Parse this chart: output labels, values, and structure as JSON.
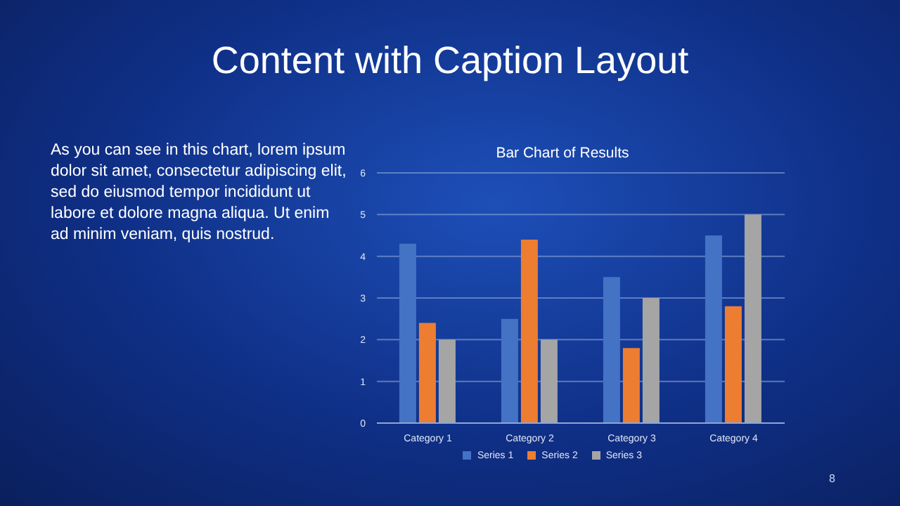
{
  "chart_data": {
    "type": "bar",
    "title": "Content with Caption Layout",
    "subtitle": "Bar Chart of Results",
    "annotations": [
      "As you can see in this chart, lorem ipsum dolor sit amet, consectetur adipiscing elit, sed do eiusmod tempor incididunt ut labore et dolore magna aliqua. Ut enim ad minim veniam, quis nostrud.",
      "8"
    ],
    "categories": [
      "Category 1",
      "Category 2",
      "Category 3",
      "Category 4"
    ],
    "series": [
      {
        "name": "Series 1",
        "color": "#4472c4",
        "values": [
          4.3,
          2.5,
          3.5,
          4.5
        ]
      },
      {
        "name": "Series 2",
        "color": "#ed7d31",
        "values": [
          2.4,
          4.4,
          1.8,
          2.8
        ]
      },
      {
        "name": "Series 3",
        "color": "#a5a5a5",
        "values": [
          2,
          2,
          3,
          5
        ]
      }
    ],
    "ylim": [
      0,
      6
    ],
    "yticks": [
      0,
      1,
      2,
      3,
      4,
      5,
      6
    ],
    "grid": "y",
    "legend": "bottom"
  }
}
